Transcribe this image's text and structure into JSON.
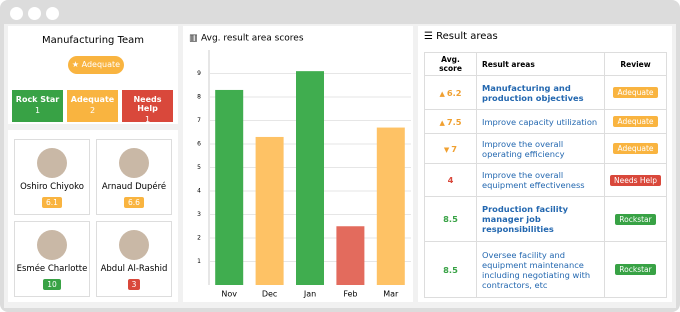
{
  "team_panel": {
    "title": "Manufacturing Team",
    "status": "Adequate",
    "status_color": "#f9b440",
    "counts": [
      {
        "label": "Rock Star",
        "value": 1,
        "color": "#38a245"
      },
      {
        "label": "Adequate",
        "value": 2,
        "color": "#f9b440"
      },
      {
        "label": "Needs Help",
        "value": 1,
        "color": "#d9483b"
      }
    ],
    "people": [
      {
        "name": "Oshiro Chiyoko",
        "score": 6.1,
        "color": "#f9b440"
      },
      {
        "name": "Arnaud Dupéré",
        "score": 6.6,
        "color": "#f9b440"
      },
      {
        "name": "Esmée Charlotte",
        "score": 10,
        "color": "#38a245"
      },
      {
        "name": "Abdul Al-Rashid",
        "score": 3,
        "color": "#d9483b"
      }
    ]
  },
  "chart_data": {
    "type": "bar",
    "title": "Avg. result area scores",
    "categories": [
      "Nov",
      "Dec",
      "Jan",
      "Feb",
      "Mar"
    ],
    "values": [
      8.3,
      6.3,
      9.1,
      2.5,
      6.7
    ],
    "colors": [
      "#40ad4f",
      "#fec265",
      "#40ad4f",
      "#e36b5d",
      "#fec265"
    ],
    "ylim": [
      0,
      10
    ],
    "yticks": [
      1,
      2,
      3,
      4,
      5,
      6,
      7,
      8,
      9
    ],
    "grid": true
  },
  "result_areas": {
    "title": "Result areas",
    "columns": [
      "Avg. score",
      "Result areas",
      "Review"
    ],
    "rows": [
      {
        "score": 6.2,
        "trend": "up",
        "score_color": "#f0a030",
        "area": "Manufacturing and production objectives",
        "bold": true,
        "review": "Adequate",
        "review_color": "#f9b440"
      },
      {
        "score": 7.5,
        "trend": "up",
        "score_color": "#f0a030",
        "area": "Improve capacity utilization",
        "bold": false,
        "review": "Adequate",
        "review_color": "#f9b440"
      },
      {
        "score": 7,
        "trend": "down",
        "score_color": "#f0a030",
        "area": "Improve the overall operating efficiency",
        "bold": false,
        "review": "Adequate",
        "review_color": "#f9b440"
      },
      {
        "score": 4,
        "trend": null,
        "score_color": "#d9483b",
        "area": "Improve the overall equipment effectiveness",
        "bold": false,
        "review": "Needs Help",
        "review_color": "#d9483b"
      },
      {
        "score": 8.5,
        "trend": null,
        "score_color": "#38a245",
        "area": "Production facility manager job responsibilities",
        "bold": true,
        "review": "Rockstar",
        "review_color": "#38a245"
      },
      {
        "score": 8.5,
        "trend": null,
        "score_color": "#38a245",
        "area": "Oversee facility and equipment maintenance including negotiating with contractors, etc",
        "bold": false,
        "review": "Rockstar",
        "review_color": "#38a245"
      }
    ]
  }
}
